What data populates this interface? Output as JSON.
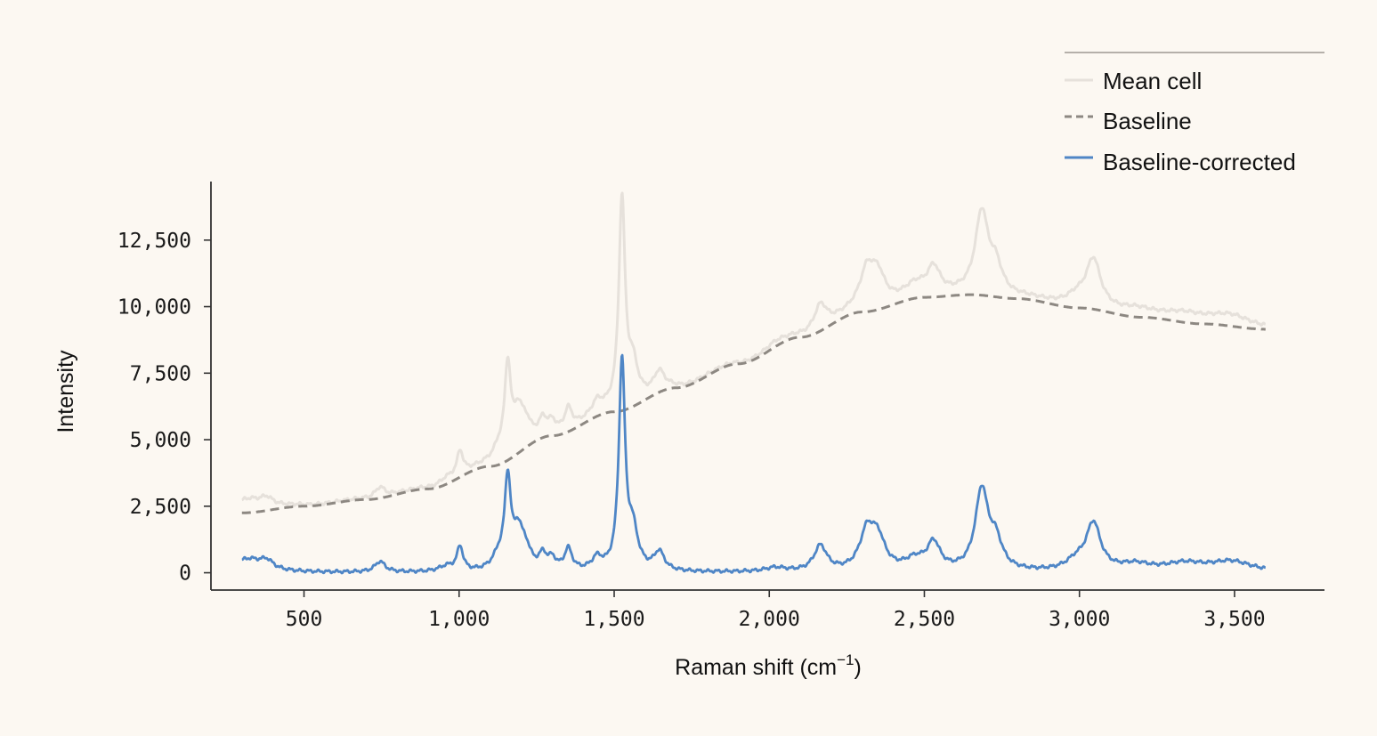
{
  "colors": {
    "background": "#fcf8f2",
    "mean_cell": "#e6e1db",
    "baseline": "#8d8882",
    "corrected": "#4f86c6",
    "axis": "#333333",
    "legend_rule": "#b5b0aa"
  },
  "chart_data": {
    "type": "line",
    "title": "",
    "xlabel": "Raman shift (cm",
    "xlabel_sup": "−1",
    "xlabel_close": ")",
    "ylabel": "Intensity",
    "xlim": [
      200,
      3790
    ],
    "ylim": [
      -650,
      14700
    ],
    "x_ticks": [
      500,
      1000,
      1500,
      2000,
      2500,
      3000,
      3500
    ],
    "x_tick_labels": [
      "500",
      "1,000",
      "1,500",
      "2,000",
      "2,500",
      "3,000",
      "3,500"
    ],
    "y_ticks": [
      0,
      2500,
      5000,
      7500,
      10000,
      12500
    ],
    "y_tick_labels": [
      "0",
      "2,500",
      "5,000",
      "7,500",
      "10,000",
      "12,500"
    ],
    "grid": false,
    "legend_position": "top-right",
    "x_range": [
      300,
      3600
    ],
    "baseline_points": [
      [
        300,
        2250
      ],
      [
        500,
        2500
      ],
      [
        700,
        2750
      ],
      [
        900,
        3150
      ],
      [
        1100,
        4000
      ],
      [
        1300,
        5150
      ],
      [
        1500,
        6050
      ],
      [
        1700,
        6950
      ],
      [
        1900,
        7850
      ],
      [
        2100,
        8850
      ],
      [
        2300,
        9800
      ],
      [
        2500,
        10350
      ],
      [
        2650,
        10450
      ],
      [
        2800,
        10300
      ],
      [
        3000,
        9950
      ],
      [
        3200,
        9600
      ],
      [
        3400,
        9350
      ],
      [
        3600,
        9150
      ]
    ],
    "peaks": [
      {
        "center": 320,
        "height": 500,
        "width": 60
      },
      {
        "center": 380,
        "height": 300,
        "width": 25
      },
      {
        "center": 745,
        "height": 400,
        "width": 20
      },
      {
        "center": 960,
        "height": 200,
        "width": 30
      },
      {
        "center": 1003,
        "height": 900,
        "width": 12
      },
      {
        "center": 1128,
        "height": 500,
        "width": 25
      },
      {
        "center": 1157,
        "height": 3300,
        "width": 12
      },
      {
        "center": 1190,
        "height": 1300,
        "width": 18
      },
      {
        "center": 1215,
        "height": 700,
        "width": 20
      },
      {
        "center": 1270,
        "height": 550,
        "width": 15
      },
      {
        "center": 1300,
        "height": 400,
        "width": 15
      },
      {
        "center": 1352,
        "height": 800,
        "width": 15
      },
      {
        "center": 1445,
        "height": 450,
        "width": 20
      },
      {
        "center": 1525,
        "height": 7800,
        "width": 12
      },
      {
        "center": 1560,
        "height": 1400,
        "width": 20
      },
      {
        "center": 1645,
        "height": 700,
        "width": 20
      },
      {
        "center": 2020,
        "height": 150,
        "width": 40
      },
      {
        "center": 2165,
        "height": 950,
        "width": 25
      },
      {
        "center": 2315,
        "height": 1400,
        "width": 28
      },
      {
        "center": 2350,
        "height": 1100,
        "width": 28
      },
      {
        "center": 2470,
        "height": 400,
        "width": 40
      },
      {
        "center": 2530,
        "height": 1000,
        "width": 25
      },
      {
        "center": 2685,
        "height": 3000,
        "width": 25
      },
      {
        "center": 2730,
        "height": 1000,
        "width": 25
      },
      {
        "center": 2990,
        "height": 350,
        "width": 40
      },
      {
        "center": 3045,
        "height": 1750,
        "width": 28
      },
      {
        "center": 3180,
        "height": 250,
        "width": 60
      },
      {
        "center": 3340,
        "height": 300,
        "width": 80
      },
      {
        "center": 3490,
        "height": 380,
        "width": 80
      }
    ],
    "series": [
      {
        "name": "Mean cell",
        "role": "mean",
        "description": "baseline + corrected"
      },
      {
        "name": "Baseline",
        "role": "baseline"
      },
      {
        "name": "Baseline-corrected",
        "role": "corrected"
      }
    ]
  }
}
